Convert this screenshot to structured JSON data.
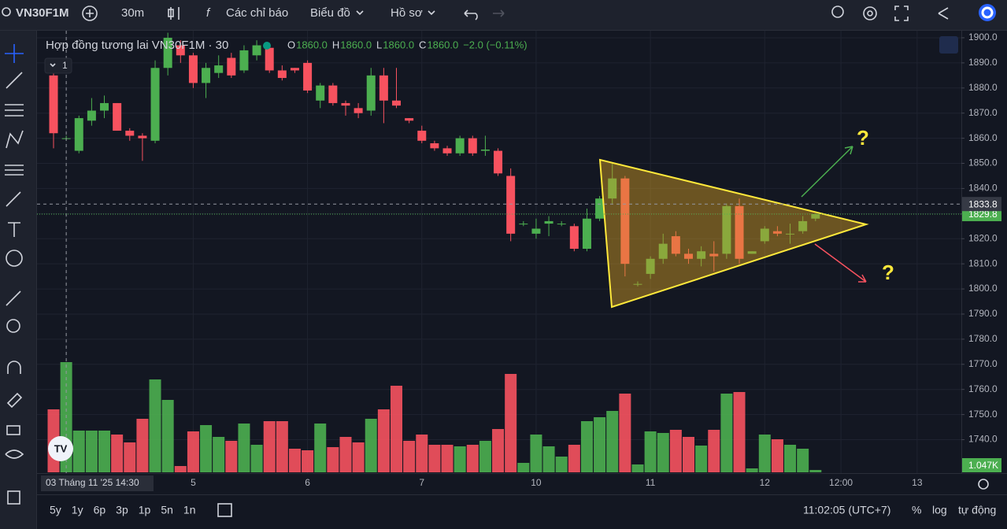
{
  "toolbar": {
    "symbol": "VN30F1M",
    "interval": "30m",
    "indicators": "Các chỉ báo",
    "chart": "Biểu đồ",
    "profile": "Hồ sơ"
  },
  "chart_data": {
    "type": "candlestick",
    "title": "Hợp đồng tương lai VN30F1M · 30",
    "ohlc_legend": {
      "o_label": "O",
      "o": "1860.0",
      "h_label": "H",
      "h": "1860.0",
      "l_label": "L",
      "l": "1860.0",
      "c_label": "C",
      "c": "1860.0",
      "change": "−2.0 (−0.11%)"
    },
    "indicator_count": "1",
    "up_color": "#4caf50",
    "down_color": "#f7525f",
    "candles": [
      {
        "o": 1885,
        "h": 1887,
        "l": 1856,
        "c": 1862
      },
      {
        "o": 1860,
        "h": 1861,
        "l": 1859,
        "c": 1860
      },
      {
        "o": 1855,
        "h": 1869,
        "l": 1854,
        "c": 1868
      },
      {
        "o": 1867,
        "h": 1876,
        "l": 1865,
        "c": 1871
      },
      {
        "o": 1871,
        "h": 1877,
        "l": 1868,
        "c": 1874
      },
      {
        "o": 1874,
        "h": 1874,
        "l": 1863,
        "c": 1863
      },
      {
        "o": 1863,
        "h": 1864,
        "l": 1859,
        "c": 1861
      },
      {
        "o": 1861,
        "h": 1862,
        "l": 1851,
        "c": 1860
      },
      {
        "o": 1859,
        "h": 1891,
        "l": 1858,
        "c": 1888
      },
      {
        "o": 1888,
        "h": 1902,
        "l": 1885,
        "c": 1900
      },
      {
        "o": 1897,
        "h": 1899,
        "l": 1890,
        "c": 1893
      },
      {
        "o": 1893,
        "h": 1894,
        "l": 1880,
        "c": 1882
      },
      {
        "o": 1882,
        "h": 1890,
        "l": 1876,
        "c": 1888
      },
      {
        "o": 1886,
        "h": 1893,
        "l": 1884,
        "c": 1889
      },
      {
        "o": 1892,
        "h": 1894,
        "l": 1884,
        "c": 1885
      },
      {
        "o": 1887,
        "h": 1897,
        "l": 1886,
        "c": 1895
      },
      {
        "o": 1893,
        "h": 1899,
        "l": 1891,
        "c": 1897
      },
      {
        "o": 1896,
        "h": 1898,
        "l": 1886,
        "c": 1887
      },
      {
        "o": 1887,
        "h": 1889,
        "l": 1883,
        "c": 1884
      },
      {
        "o": 1888,
        "h": 1888,
        "l": 1886,
        "c": 1887
      },
      {
        "o": 1890,
        "h": 1891,
        "l": 1878,
        "c": 1879
      },
      {
        "o": 1875,
        "h": 1882,
        "l": 1872,
        "c": 1881
      },
      {
        "o": 1881,
        "h": 1882,
        "l": 1873,
        "c": 1874
      },
      {
        "o": 1874,
        "h": 1875,
        "l": 1869,
        "c": 1873
      },
      {
        "o": 1872,
        "h": 1874,
        "l": 1868,
        "c": 1870
      },
      {
        "o": 1871,
        "h": 1888,
        "l": 1869,
        "c": 1885
      },
      {
        "o": 1885,
        "h": 1888,
        "l": 1866,
        "c": 1875
      },
      {
        "o": 1875,
        "h": 1888,
        "l": 1872,
        "c": 1873
      },
      {
        "o": 1868,
        "h": 1868,
        "l": 1866,
        "c": 1867
      },
      {
        "o": 1863,
        "h": 1865,
        "l": 1858,
        "c": 1859
      },
      {
        "o": 1858,
        "h": 1859,
        "l": 1855,
        "c": 1856
      },
      {
        "o": 1856,
        "h": 1857,
        "l": 1853,
        "c": 1854
      },
      {
        "o": 1854,
        "h": 1861,
        "l": 1853,
        "c": 1860
      },
      {
        "o": 1860,
        "h": 1861,
        "l": 1853,
        "c": 1854
      },
      {
        "o": 1855,
        "h": 1861,
        "l": 1853,
        "c": 1855.5
      },
      {
        "o": 1855,
        "h": 1856,
        "l": 1845,
        "c": 1846
      },
      {
        "o": 1845,
        "h": 1848,
        "l": 1819,
        "c": 1822
      },
      {
        "o": 1826,
        "h": 1827,
        "l": 1825,
        "c": 1826
      },
      {
        "o": 1822,
        "h": 1828,
        "l": 1820,
        "c": 1824
      },
      {
        "o": 1826,
        "h": 1829,
        "l": 1821,
        "c": 1827
      },
      {
        "o": 1826,
        "h": 1827,
        "l": 1825,
        "c": 1826
      },
      {
        "o": 1825,
        "h": 1826,
        "l": 1815,
        "c": 1816
      },
      {
        "o": 1816,
        "h": 1832,
        "l": 1815,
        "c": 1828
      },
      {
        "o": 1828,
        "h": 1837,
        "l": 1827,
        "c": 1836
      },
      {
        "o": 1836,
        "h": 1850,
        "l": 1834,
        "c": 1844
      },
      {
        "o": 1844,
        "h": 1845,
        "l": 1805,
        "c": 1810
      },
      {
        "o": 1802,
        "h": 1803,
        "l": 1801,
        "c": 1802
      },
      {
        "o": 1806,
        "h": 1813,
        "l": 1804,
        "c": 1812
      },
      {
        "o": 1812,
        "h": 1822,
        "l": 1810,
        "c": 1818
      },
      {
        "o": 1821,
        "h": 1823,
        "l": 1813,
        "c": 1814
      },
      {
        "o": 1814,
        "h": 1816,
        "l": 1810,
        "c": 1812
      },
      {
        "o": 1812,
        "h": 1817,
        "l": 1809,
        "c": 1815
      },
      {
        "o": 1814,
        "h": 1819,
        "l": 1807,
        "c": 1813
      },
      {
        "o": 1814,
        "h": 1834,
        "l": 1812,
        "c": 1833
      },
      {
        "o": 1833,
        "h": 1836,
        "l": 1810,
        "c": 1812
      },
      {
        "o": 1814,
        "h": 1815,
        "l": 1814,
        "c": 1815
      },
      {
        "o": 1819,
        "h": 1825,
        "l": 1818,
        "c": 1824
      },
      {
        "o": 1823,
        "h": 1825,
        "l": 1821,
        "c": 1822
      },
      {
        "o": 1822,
        "h": 1826,
        "l": 1818,
        "c": 1822
      },
      {
        "o": 1823,
        "h": 1829,
        "l": 1822,
        "c": 1827
      },
      {
        "o": 1828,
        "h": 1830,
        "l": 1827,
        "c": 1829.8
      }
    ],
    "volumes": [
      28000,
      49000,
      18550,
      18550,
      18550,
      16800,
      13300,
      23800,
      41300,
      32200,
      2800,
      18200,
      21000,
      15750,
      14000,
      21700,
      12250,
      22750,
      22750,
      10500,
      9800,
      21700,
      11200,
      15750,
      13300,
      23800,
      28000,
      38500,
      14000,
      16800,
      12250,
      12250,
      11550,
      12250,
      14000,
      19250,
      43750,
      4200,
      16800,
      11550,
      7000,
      12250,
      22750,
      24500,
      27300,
      35000,
      3500,
      18200,
      17500,
      18900,
      15750,
      11900,
      18900,
      35000,
      35700,
      1750,
      16800,
      14700,
      12250,
      10500,
      1047
    ],
    "last_volume_label": "1.047K",
    "ylim": [
      1727,
      1902.5
    ],
    "yticks": [
      {
        "value": 1900,
        "label": "1900.0"
      },
      {
        "value": 1890,
        "label": "1890.0"
      },
      {
        "value": 1880,
        "label": "1880.0"
      },
      {
        "value": 1870,
        "label": "1870.0"
      },
      {
        "value": 1860,
        "label": "1860.0"
      },
      {
        "value": 1850,
        "label": "1850.0"
      },
      {
        "value": 1840,
        "label": "1840.0"
      },
      {
        "value": 1830,
        "label": "1830.0"
      },
      {
        "value": 1820,
        "label": "1820.0"
      },
      {
        "value": 1810,
        "label": "1810.0"
      },
      {
        "value": 1800,
        "label": "1800.0"
      },
      {
        "value": 1790,
        "label": "1790.0"
      },
      {
        "value": 1780,
        "label": "1780.0"
      },
      {
        "value": 1770,
        "label": "1770.0"
      },
      {
        "value": 1760,
        "label": "1760.0"
      },
      {
        "value": 1750,
        "label": "1750.0"
      },
      {
        "value": 1740,
        "label": "1740.0"
      }
    ],
    "xticks": [
      {
        "value": 1,
        "label": "03 Tháng 11 '25   14:30"
      },
      {
        "value": 11,
        "label": "5"
      },
      {
        "value": 20,
        "label": "6"
      },
      {
        "value": 29,
        "label": "7"
      },
      {
        "value": 38,
        "label": "10"
      },
      {
        "value": 47,
        "label": "11"
      },
      {
        "value": 56,
        "label": "12"
      },
      {
        "value": 62,
        "label": "12:00"
      },
      {
        "value": 68,
        "label": "13"
      }
    ],
    "crosshair_price": 1833.8,
    "last_price": 1829.8,
    "annotations": [
      "?",
      "?"
    ],
    "grid": true
  },
  "footer": {
    "ranges": [
      "5y",
      "1y",
      "6p",
      "3p",
      "1p",
      "5n",
      "1n"
    ],
    "clock": "11:02:05 (UTC+7)",
    "percent": "%",
    "log": "log",
    "auto": "tự động"
  }
}
